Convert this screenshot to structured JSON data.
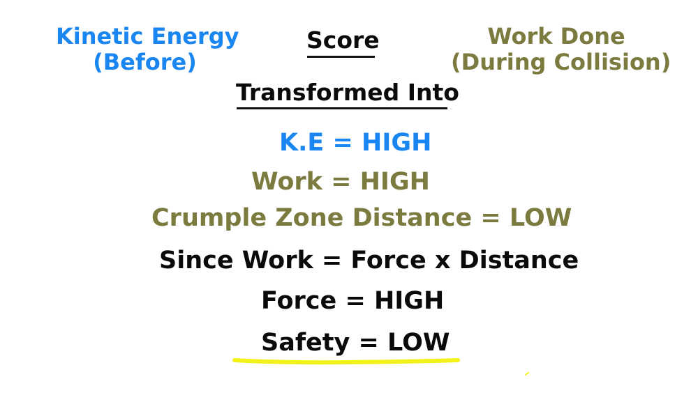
{
  "header": {
    "kinetic_energy_line1": "Kinetic Energy",
    "kinetic_energy_line2": "(Before)",
    "score": "Score",
    "work_done_line1": "Work Done",
    "work_done_line2": "(During Collision)",
    "transformed_into": "Transformed Into"
  },
  "lines": {
    "ke": "K.E = HIGH",
    "work": "Work = HIGH",
    "crumple": "Crumple Zone Distance = LOW",
    "since": "Since Work = Force x Distance",
    "force": "Force = HIGH",
    "safety": "Safety = LOW"
  },
  "colors": {
    "blue": "#1a86f2",
    "olive": "#7b7b3f",
    "black": "#0a0a0a",
    "highlight": "#f2f21a"
  }
}
